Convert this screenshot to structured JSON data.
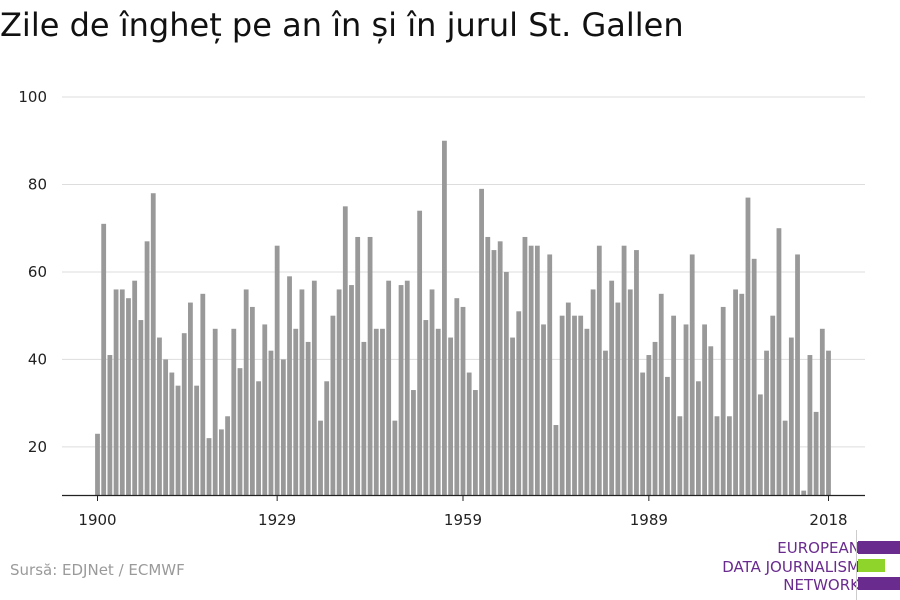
{
  "title": "Zile de îngheț pe an în și în jurul St. Gallen",
  "source": "Sursă: EDJNet / ECMWF",
  "logo": {
    "lines": [
      "EUROPEAN",
      "DATA JOURNALISM",
      "NETWORK"
    ],
    "text_color": "#6a2b8e",
    "bar_colors": [
      "#6a2b8e",
      "#8ed42b",
      "#6a2b8e"
    ]
  },
  "colors": {
    "bar": "#999999",
    "grid": "#dddddd",
    "axis": "#222222"
  },
  "chart_data": {
    "type": "bar",
    "title": "Zile de îngheț pe an în și în jurul St. Gallen",
    "xlabel": "",
    "ylabel": "",
    "ylim": [
      9,
      100
    ],
    "yticks": [
      20,
      40,
      60,
      80,
      100
    ],
    "xticks": [
      1900,
      1929,
      1959,
      1989,
      2018
    ],
    "grid": true,
    "start_year": 1900,
    "end_year": 2018,
    "years": [
      1900,
      1901,
      1902,
      1903,
      1904,
      1905,
      1906,
      1907,
      1908,
      1909,
      1910,
      1911,
      1912,
      1913,
      1914,
      1915,
      1916,
      1917,
      1918,
      1919,
      1920,
      1921,
      1922,
      1923,
      1924,
      1925,
      1926,
      1927,
      1928,
      1929,
      1930,
      1931,
      1932,
      1933,
      1934,
      1935,
      1936,
      1937,
      1938,
      1939,
      1940,
      1941,
      1942,
      1943,
      1944,
      1945,
      1946,
      1947,
      1948,
      1949,
      1950,
      1951,
      1952,
      1953,
      1954,
      1955,
      1956,
      1957,
      1958,
      1959,
      1960,
      1961,
      1962,
      1963,
      1964,
      1965,
      1966,
      1967,
      1968,
      1969,
      1970,
      1971,
      1972,
      1973,
      1974,
      1975,
      1976,
      1977,
      1978,
      1979,
      1980,
      1981,
      1982,
      1983,
      1984,
      1985,
      1986,
      1987,
      1988,
      1989,
      1990,
      1991,
      1992,
      1993,
      1994,
      1995,
      1996,
      1997,
      1998,
      1999,
      2000,
      2001,
      2002,
      2003,
      2004,
      2005,
      2006,
      2007,
      2008,
      2009,
      2010,
      2011,
      2012,
      2013,
      2014,
      2015,
      2016,
      2017,
      2018
    ],
    "values": [
      23,
      71,
      41,
      56,
      56,
      54,
      58,
      49,
      67,
      78,
      45,
      40,
      37,
      34,
      46,
      53,
      34,
      55,
      22,
      47,
      24,
      27,
      47,
      38,
      56,
      52,
      35,
      48,
      42,
      66,
      40,
      59,
      47,
      56,
      44,
      58,
      26,
      35,
      50,
      56,
      75,
      57,
      68,
      44,
      68,
      47,
      47,
      58,
      26,
      57,
      58,
      33,
      74,
      49,
      56,
      47,
      90,
      45,
      54,
      52,
      37,
      33,
      79,
      68,
      65,
      67,
      60,
      45,
      51,
      68,
      66,
      66,
      48,
      64,
      25,
      50,
      53,
      50,
      50,
      47,
      56,
      66,
      42,
      58,
      53,
      66,
      56,
      65,
      37,
      41,
      44,
      55,
      36,
      50,
      27,
      48,
      64,
      35,
      48,
      43,
      27,
      52,
      27,
      56,
      55,
      77,
      63,
      32,
      42,
      50,
      70,
      26,
      45,
      64,
      10,
      41,
      28,
      47,
      42
    ]
  }
}
